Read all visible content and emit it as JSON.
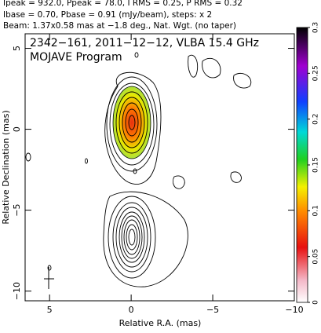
{
  "chart_data": {
    "type": "contour",
    "header": [
      "Ipeak = 932.0, Ppeak = 78.0, I RMS = 0.25, P RMS = 0.32",
      "Ibase = 0.70, Pbase = 0.91 (mJy/beam), steps: x 2",
      "Beam: 1.37x0.58 mas at −1.8 deg., Nat. Wgt. (no taper)"
    ],
    "title": "2342−161, 2011−12−12, VLBA 15.4 GHz",
    "subtitle": "MOJAVE Program",
    "x_label": "Relative R.A. (mas)",
    "y_label": "Relative Declination (mas)",
    "xlim": [
      6.5,
      -10
    ],
    "ylim": [
      -10.6,
      5.9
    ],
    "xticks": [
      5,
      0,
      {
        "value": -5,
        "label": "−5"
      },
      {
        "value": -10,
        "label": "−10"
      }
    ],
    "yticks": [
      5,
      0,
      {
        "value": -5,
        "label": "−5"
      },
      {
        "value": -10,
        "label": "−10"
      }
    ],
    "colorbar_lim": [
      0,
      0.3
    ],
    "colorbar_ticks": [
      0,
      0.05,
      0.1,
      0.15,
      0.2,
      0.25,
      0.3
    ]
  }
}
